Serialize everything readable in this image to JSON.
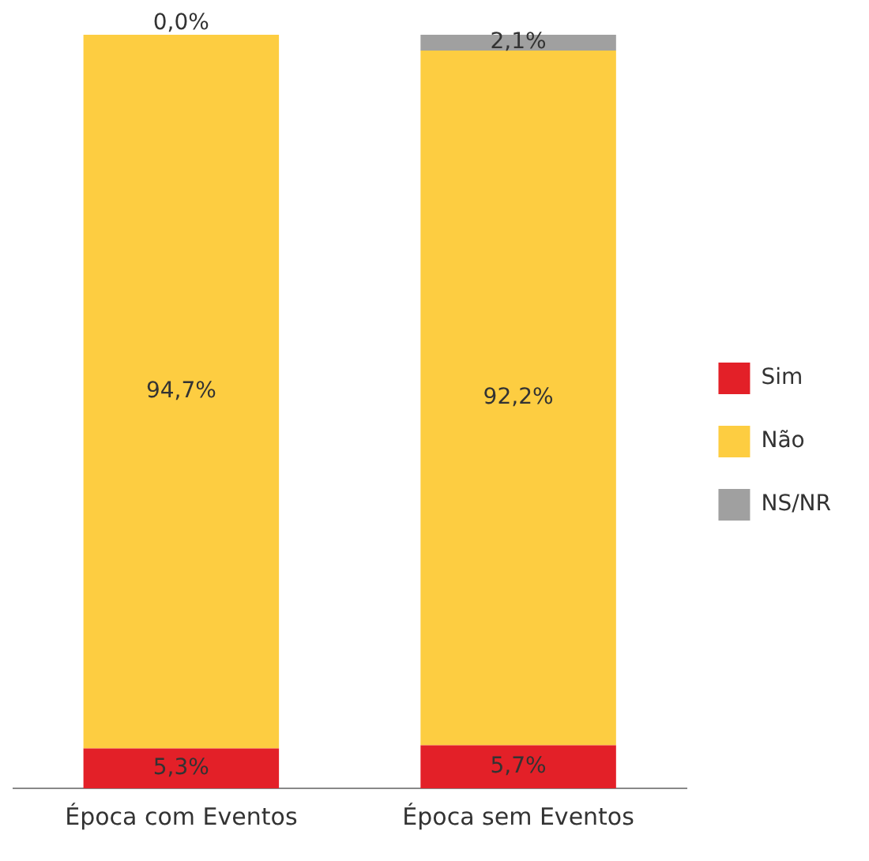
{
  "chart_data": {
    "type": "bar",
    "stacked": true,
    "categories": [
      "Época com Eventos",
      "Época sem Eventos"
    ],
    "series": [
      {
        "name": "Sim",
        "color": "#e32028",
        "values": [
          5.3,
          5.7
        ],
        "value_labels": [
          "5,3%",
          "5,7%"
        ]
      },
      {
        "name": "Não",
        "color": "#fdcd41",
        "values": [
          94.7,
          92.2
        ],
        "value_labels": [
          "94,7%",
          "92,2%"
        ]
      },
      {
        "name": "NS/NR",
        "color": "#a0a0a0",
        "values": [
          0.0,
          2.1
        ],
        "value_labels": [
          "0,0%",
          "2,1%"
        ]
      }
    ],
    "legend": "right",
    "grid": false
  }
}
